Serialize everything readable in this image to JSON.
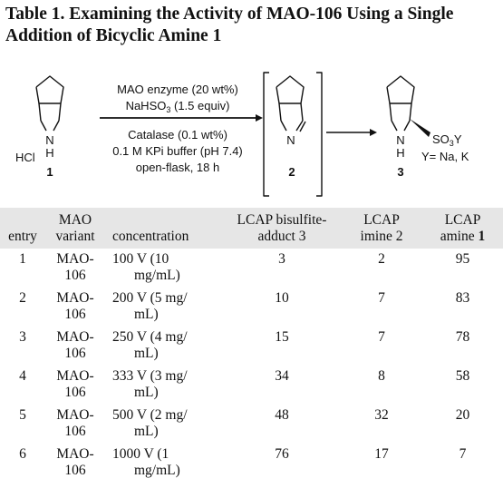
{
  "title": {
    "line1": "Table 1. Examining the Activity of MAO-106 Using a Single",
    "line2": "Addition of Bicyclic Amine 1"
  },
  "scheme": {
    "salt_label": "HCl",
    "nh_n": "N",
    "nh_h": "H",
    "compound1": "1",
    "compound2": "2",
    "compound3": "3",
    "imine_n": "N",
    "product_n": "N",
    "product_h": "H",
    "so3_prefix": "SO",
    "so3_sub": "3",
    "so3_suffix": "Y",
    "y_def": "Y= Na, K",
    "cond_top1": "MAO enzyme (20 wt%)",
    "cond_top2_a": "NaHSO",
    "cond_top2_sub": "3",
    "cond_top2_b": " (1.5 equiv)",
    "cond_bot1": "Catalase (0.1 wt%)",
    "cond_bot2": "0.1 M KPi buffer (pH 7.4)",
    "cond_bot3": "open-flask, 18 h"
  },
  "table": {
    "headers": {
      "entry": "entry",
      "variant_1": "MAO",
      "variant_2": "variant",
      "concentration": "concentration",
      "bisulfite_1": "LCAP bisulfite-",
      "bisulfite_2": "adduct 3",
      "imine_1": "LCAP",
      "imine_2": "imine 2",
      "amine_1": "LCAP",
      "amine_2": "amine ",
      "amine_num": "1"
    },
    "rows": [
      {
        "entry": "1",
        "variant_1": "MAO-",
        "variant_2": "106",
        "conc_1": "100 V (10",
        "conc_2": "mg/mL)",
        "bisulfite": "3",
        "imine": "2",
        "amine": "95"
      },
      {
        "entry": "2",
        "variant_1": "MAO-",
        "variant_2": "106",
        "conc_1": "200 V (5 mg/",
        "conc_2": "mL)",
        "bisulfite": "10",
        "imine": "7",
        "amine": "83"
      },
      {
        "entry": "3",
        "variant_1": "MAO-",
        "variant_2": "106",
        "conc_1": "250 V (4 mg/",
        "conc_2": "mL)",
        "bisulfite": "15",
        "imine": "7",
        "amine": "78"
      },
      {
        "entry": "4",
        "variant_1": "MAO-",
        "variant_2": "106",
        "conc_1": "333 V (3 mg/",
        "conc_2": "mL)",
        "bisulfite": "34",
        "imine": "8",
        "amine": "58"
      },
      {
        "entry": "5",
        "variant_1": "MAO-",
        "variant_2": "106",
        "conc_1": "500 V (2 mg/",
        "conc_2": "mL)",
        "bisulfite": "48",
        "imine": "32",
        "amine": "20"
      },
      {
        "entry": "6",
        "variant_1": "MAO-",
        "variant_2": "106",
        "conc_1": "1000 V (1",
        "conc_2": "mg/mL)",
        "bisulfite": "76",
        "imine": "17",
        "amine": "7"
      }
    ]
  }
}
